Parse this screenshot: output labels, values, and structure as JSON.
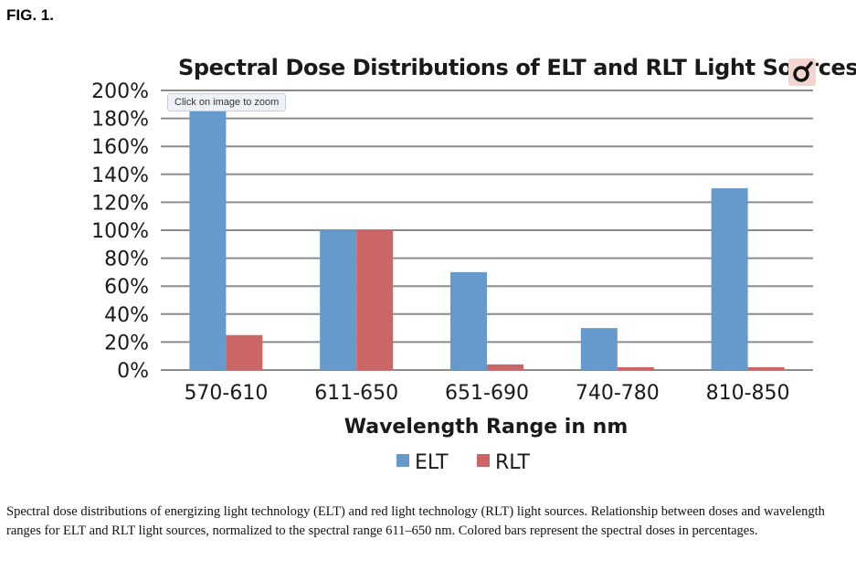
{
  "figure_label": "FIG. 1.",
  "zoom_tooltip": "Click on image to zoom",
  "icons": {
    "zoom": "zoom-magnifier-icon"
  },
  "caption": "Spectral dose distributions of energizing light technology (ELT) and red light technology (RLT) light sources. Relationship between doses and wavelength ranges for ELT and RLT light sources, normalized to the spectral range 611–650 nm. Colored bars represent the spectral doses in percentages.",
  "chart_data": {
    "type": "bar",
    "title": "Spectral Dose Distributions of ELT and RLT Light Sources",
    "xlabel": "Wavelength Range in nm",
    "ylabel": "",
    "categories": [
      "570-610",
      "611-650",
      "651-690",
      "740-780",
      "810-850"
    ],
    "series": [
      {
        "name": "ELT",
        "color": "#6699cc",
        "values": [
          188,
          100,
          70,
          30,
          130
        ]
      },
      {
        "name": "RLT",
        "color": "#cc6666",
        "values": [
          25,
          100,
          4,
          2,
          2
        ]
      }
    ],
    "ylim": [
      0,
      200
    ],
    "yticks": [
      "0%",
      "20%",
      "40%",
      "60%",
      "80%",
      "100%",
      "120%",
      "140%",
      "160%",
      "180%",
      "200%"
    ],
    "grid": true,
    "legend": "bottom-center"
  }
}
